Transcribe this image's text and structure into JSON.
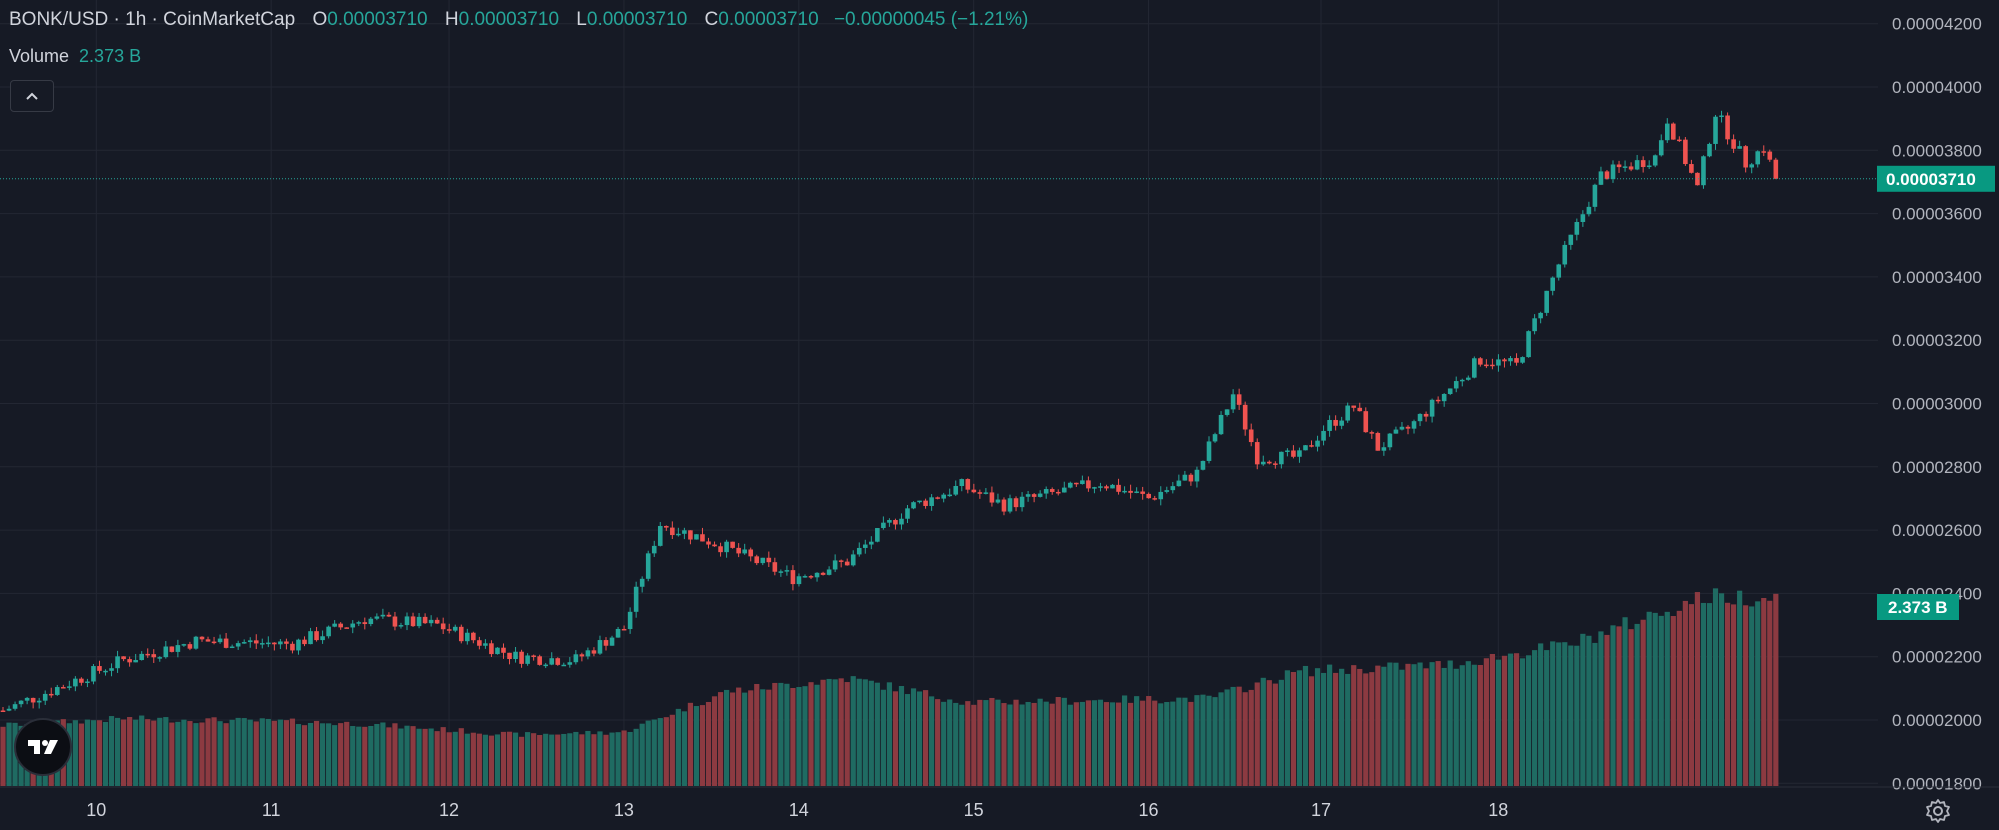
{
  "legend": {
    "symbol": "BONK/USD · 1h · CoinMarketCap",
    "o_label": "O",
    "o_value": "0.00003710",
    "h_label": "H",
    "h_value": "0.00003710",
    "l_label": "L",
    "l_value": "0.00003710",
    "c_label": "C",
    "c_value": "0.00003710",
    "change": "−0.00000045 (−1.21%)"
  },
  "volume": {
    "label": "Volume",
    "value": "2.373 B"
  },
  "icons": {
    "collapse": "chevron-up-icon",
    "logo": "tradingview-logo",
    "settings": "gear-icon"
  },
  "colors": {
    "up": "#26a69a",
    "down": "#ef5350",
    "up_volume": "#1f6b62",
    "down_volume": "#8c3a41",
    "background": "#161a25",
    "grid": "#232733",
    "price_tag": "#089981"
  },
  "chart_data": {
    "type": "candlestick",
    "symbol": "BONK/USD",
    "interval": "1h",
    "y_axis": {
      "ylim": [
        1.78e-05,
        4.21e-05
      ],
      "ticks": [
        "0.00004200",
        "0.00004000",
        "0.00003800",
        "0.00003600",
        "0.00003400",
        "0.00003200",
        "0.00003000",
        "0.00002800",
        "0.00002600",
        "0.00002400",
        "0.00002200",
        "0.00002000",
        "0.00001800"
      ]
    },
    "x_axis": {
      "ticks": [
        "10",
        "11",
        "12",
        "13",
        "14",
        "15",
        "16",
        "17",
        "18"
      ]
    },
    "last_price": "0.00003710",
    "last_volume": "2.373 B",
    "grid": true,
    "waypoints": [
      {
        "x": 0,
        "p": 2.03e-05
      },
      {
        "x": 20,
        "p": 2.19e-05
      },
      {
        "x": 32,
        "p": 2.25e-05
      },
      {
        "x": 48,
        "p": 2.24e-05
      },
      {
        "x": 60,
        "p": 2.32e-05
      },
      {
        "x": 72,
        "p": 2.3e-05
      },
      {
        "x": 85,
        "p": 2.2e-05
      },
      {
        "x": 95,
        "p": 2.19e-05
      },
      {
        "x": 103,
        "p": 2.29e-05
      },
      {
        "x": 109,
        "p": 2.62e-05
      },
      {
        "x": 118,
        "p": 2.56e-05
      },
      {
        "x": 131,
        "p": 2.45e-05
      },
      {
        "x": 140,
        "p": 2.5e-05
      },
      {
        "x": 150,
        "p": 2.67e-05
      },
      {
        "x": 159,
        "p": 2.74e-05
      },
      {
        "x": 166,
        "p": 2.68e-05
      },
      {
        "x": 182,
        "p": 2.75e-05
      },
      {
        "x": 190,
        "p": 2.7e-05
      },
      {
        "x": 198,
        "p": 2.78e-05
      },
      {
        "x": 204,
        "p": 3.03e-05
      },
      {
        "x": 208,
        "p": 2.83e-05
      },
      {
        "x": 215,
        "p": 2.83e-05
      },
      {
        "x": 219,
        "p": 2.92e-05
      },
      {
        "x": 224,
        "p": 2.99e-05
      },
      {
        "x": 228,
        "p": 2.86e-05
      },
      {
        "x": 233,
        "p": 2.92e-05
      },
      {
        "x": 245,
        "p": 3.14e-05
      },
      {
        "x": 251,
        "p": 3.12e-05
      },
      {
        "x": 258,
        "p": 3.44e-05
      },
      {
        "x": 265,
        "p": 3.72e-05
      },
      {
        "x": 274,
        "p": 3.78e-05
      },
      {
        "x": 276,
        "p": 3.9e-05
      },
      {
        "x": 281,
        "p": 3.68e-05
      },
      {
        "x": 284,
        "p": 3.92e-05
      },
      {
        "x": 289,
        "p": 3.76e-05
      },
      {
        "x": 292,
        "p": 3.81e-05
      },
      {
        "x": 294,
        "p": 3.71e-05
      }
    ],
    "volume_waypoints": [
      {
        "x": 0,
        "v": 0.45
      },
      {
        "x": 20,
        "v": 0.5
      },
      {
        "x": 45,
        "v": 0.48
      },
      {
        "x": 60,
        "v": 0.46
      },
      {
        "x": 85,
        "v": 0.38
      },
      {
        "x": 103,
        "v": 0.4
      },
      {
        "x": 120,
        "v": 0.7
      },
      {
        "x": 140,
        "v": 0.8
      },
      {
        "x": 160,
        "v": 0.62
      },
      {
        "x": 200,
        "v": 0.65
      },
      {
        "x": 215,
        "v": 0.85
      },
      {
        "x": 240,
        "v": 0.9
      },
      {
        "x": 260,
        "v": 1.05
      },
      {
        "x": 282,
        "v": 1.4
      },
      {
        "x": 294,
        "v": 1.4
      }
    ]
  }
}
